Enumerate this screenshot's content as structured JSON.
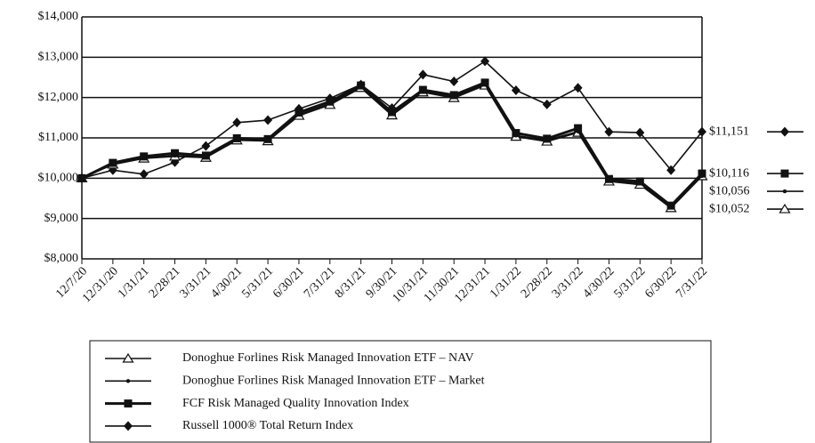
{
  "chart_data": {
    "type": "line",
    "categories": [
      "12/7/20",
      "12/31/20",
      "1/31/21",
      "2/28/21",
      "3/31/21",
      "4/30/21",
      "5/31/21",
      "6/30/21",
      "7/31/21",
      "8/31/21",
      "9/30/21",
      "10/31/21",
      "11/30/21",
      "12/31/21",
      "1/31/22",
      "2/28/22",
      "3/31/22",
      "4/30/22",
      "5/31/22",
      "6/30/22",
      "7/31/22"
    ],
    "ylim": [
      8000,
      14000
    ],
    "yticks": [
      {
        "value": 8000,
        "label": "$8,000"
      },
      {
        "value": 9000,
        "label": "$9,000"
      },
      {
        "value": 10000,
        "label": "$10,000"
      },
      {
        "value": 11000,
        "label": "$11,000"
      },
      {
        "value": 12000,
        "label": "$12,000"
      },
      {
        "value": 13000,
        "label": "$13,000"
      },
      {
        "value": 14000,
        "label": "$14,000"
      }
    ],
    "grid": true,
    "series": [
      {
        "name": "Donoghue Forlines Risk Managed Innovation ETF – NAV",
        "color": "#111111",
        "marker": "triangle",
        "values": [
          10000,
          10340,
          10490,
          10540,
          10510,
          10940,
          10920,
          11550,
          11820,
          12240,
          11560,
          12130,
          11990,
          12300,
          11030,
          10910,
          11130,
          9920,
          9840,
          9260,
          10052
        ],
        "value_labels": [
          null,
          null,
          null,
          null,
          null,
          null,
          null,
          null,
          null,
          null,
          null,
          null,
          null,
          null,
          null,
          null,
          null,
          null,
          null,
          null,
          "$10,052"
        ]
      },
      {
        "name": "Donoghue Forlines Risk Managed Innovation ETF – Market",
        "color": "#111111",
        "marker": "dot",
        "values": [
          10000,
          10360,
          10510,
          10560,
          10530,
          10960,
          10940,
          11580,
          11850,
          12260,
          11590,
          12160,
          12020,
          12330,
          11060,
          10940,
          11160,
          9940,
          9870,
          9290,
          10056
        ],
        "value_labels": [
          null,
          null,
          null,
          null,
          null,
          null,
          null,
          null,
          null,
          null,
          null,
          null,
          null,
          null,
          null,
          null,
          null,
          null,
          null,
          null,
          "$10,056"
        ]
      },
      {
        "name": "FCF Risk Managed Quality Innovation Index",
        "color": "#111111",
        "marker": "square",
        "values": [
          10000,
          10380,
          10540,
          10620,
          10560,
          10990,
          10970,
          11630,
          11900,
          12300,
          11640,
          12190,
          12060,
          12370,
          11120,
          10980,
          11240,
          9980,
          9920,
          9320,
          10116
        ],
        "value_labels": [
          null,
          null,
          null,
          null,
          null,
          null,
          null,
          null,
          null,
          null,
          null,
          null,
          null,
          null,
          null,
          null,
          null,
          null,
          null,
          null,
          "$10,116"
        ]
      },
      {
        "name": "Russell 1000® Total Return Index",
        "color": "#111111",
        "marker": "diamond",
        "values": [
          10000,
          10200,
          10100,
          10400,
          10800,
          11380,
          11440,
          11720,
          11980,
          12320,
          11740,
          12570,
          12400,
          12900,
          12180,
          11830,
          12240,
          11150,
          11130,
          10200,
          11151
        ],
        "value_labels": [
          null,
          null,
          null,
          null,
          null,
          null,
          null,
          null,
          null,
          null,
          null,
          null,
          null,
          null,
          null,
          null,
          null,
          null,
          null,
          null,
          "$11,151"
        ]
      }
    ]
  }
}
